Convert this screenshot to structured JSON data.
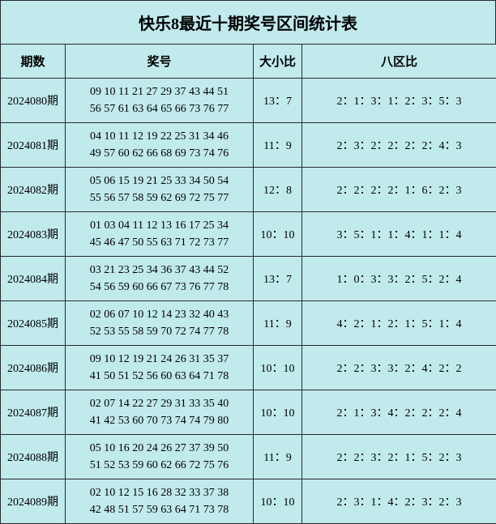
{
  "title": "快乐8最近十期奖号区间统计表",
  "headers": {
    "period": "期数",
    "numbers": "奖号",
    "ratio": "大小比",
    "zone": "八区比"
  },
  "rows": [
    {
      "period": "2024080期",
      "line1": "09 10 11 21 27 29 37 43 44 51",
      "line2": "56 57 61 63 64 65 66 73 76 77",
      "ratio": "13：7",
      "zone": "2：1：3：1：2：3：5：3"
    },
    {
      "period": "2024081期",
      "line1": "04 10 11 12 19 22 25 31 34 46",
      "line2": "49 57 60 62 66 68 69 73 74 76",
      "ratio": "11：9",
      "zone": "2：3：2：2：2：2：4：3"
    },
    {
      "period": "2024082期",
      "line1": "05 06 15 19 21 25 33 34 50 54",
      "line2": "55 56 57 58 59 62 69 72 75 77",
      "ratio": "12：8",
      "zone": "2：2：2：2：1：6：2：3"
    },
    {
      "period": "2024083期",
      "line1": "01 03 04 11 12 13 16 17 25 34",
      "line2": "45 46 47 50 55 63 71 72 73 77",
      "ratio": "10：10",
      "zone": "3：5：1：1：4：1：1：4"
    },
    {
      "period": "2024084期",
      "line1": "03 21 23 25 34 36 37 43 44 52",
      "line2": "54 56 59 60 66 67 73 76 77 78",
      "ratio": "13：7",
      "zone": "1：0：3：3：2：5：2：4"
    },
    {
      "period": "2024085期",
      "line1": "02 06 07 10 12 14 23 32 40 43",
      "line2": "52 53 55 58 59 70 72 74 77 78",
      "ratio": "11：9",
      "zone": "4：2：1：2：1：5：1：4"
    },
    {
      "period": "2024086期",
      "line1": "09 10 12 19 21 24 26 31 35 37",
      "line2": "41 50 51 52 56 60 63 64 71 78",
      "ratio": "10：10",
      "zone": "2：2：3：3：2：4：2：2"
    },
    {
      "period": "2024087期",
      "line1": "02 07 14 22 27 29 31 33 35 40",
      "line2": "41 42 53 60 70 73 74 74 79 80",
      "ratio": "10：10",
      "zone": "2：1：3：4：2：2：2：4"
    },
    {
      "period": "2024088期",
      "line1": "05 10 16 20 24 26 27 37 39 50",
      "line2": "51 52 53 59 60 62 66 72 75 76",
      "ratio": "11：9",
      "zone": "2：2：3：2：1：5：2：3"
    },
    {
      "period": "2024089期",
      "line1": "02 10 12 15 16 28 32 33 37 38",
      "line2": "42 48 51 57 59 63 64 71 73 78",
      "ratio": "10：10",
      "zone": "2：3：1：4：2：3：2：3"
    }
  ],
  "colors": {
    "background": "#c1eaed",
    "border": "#2a2a2a",
    "text": "#000000"
  }
}
